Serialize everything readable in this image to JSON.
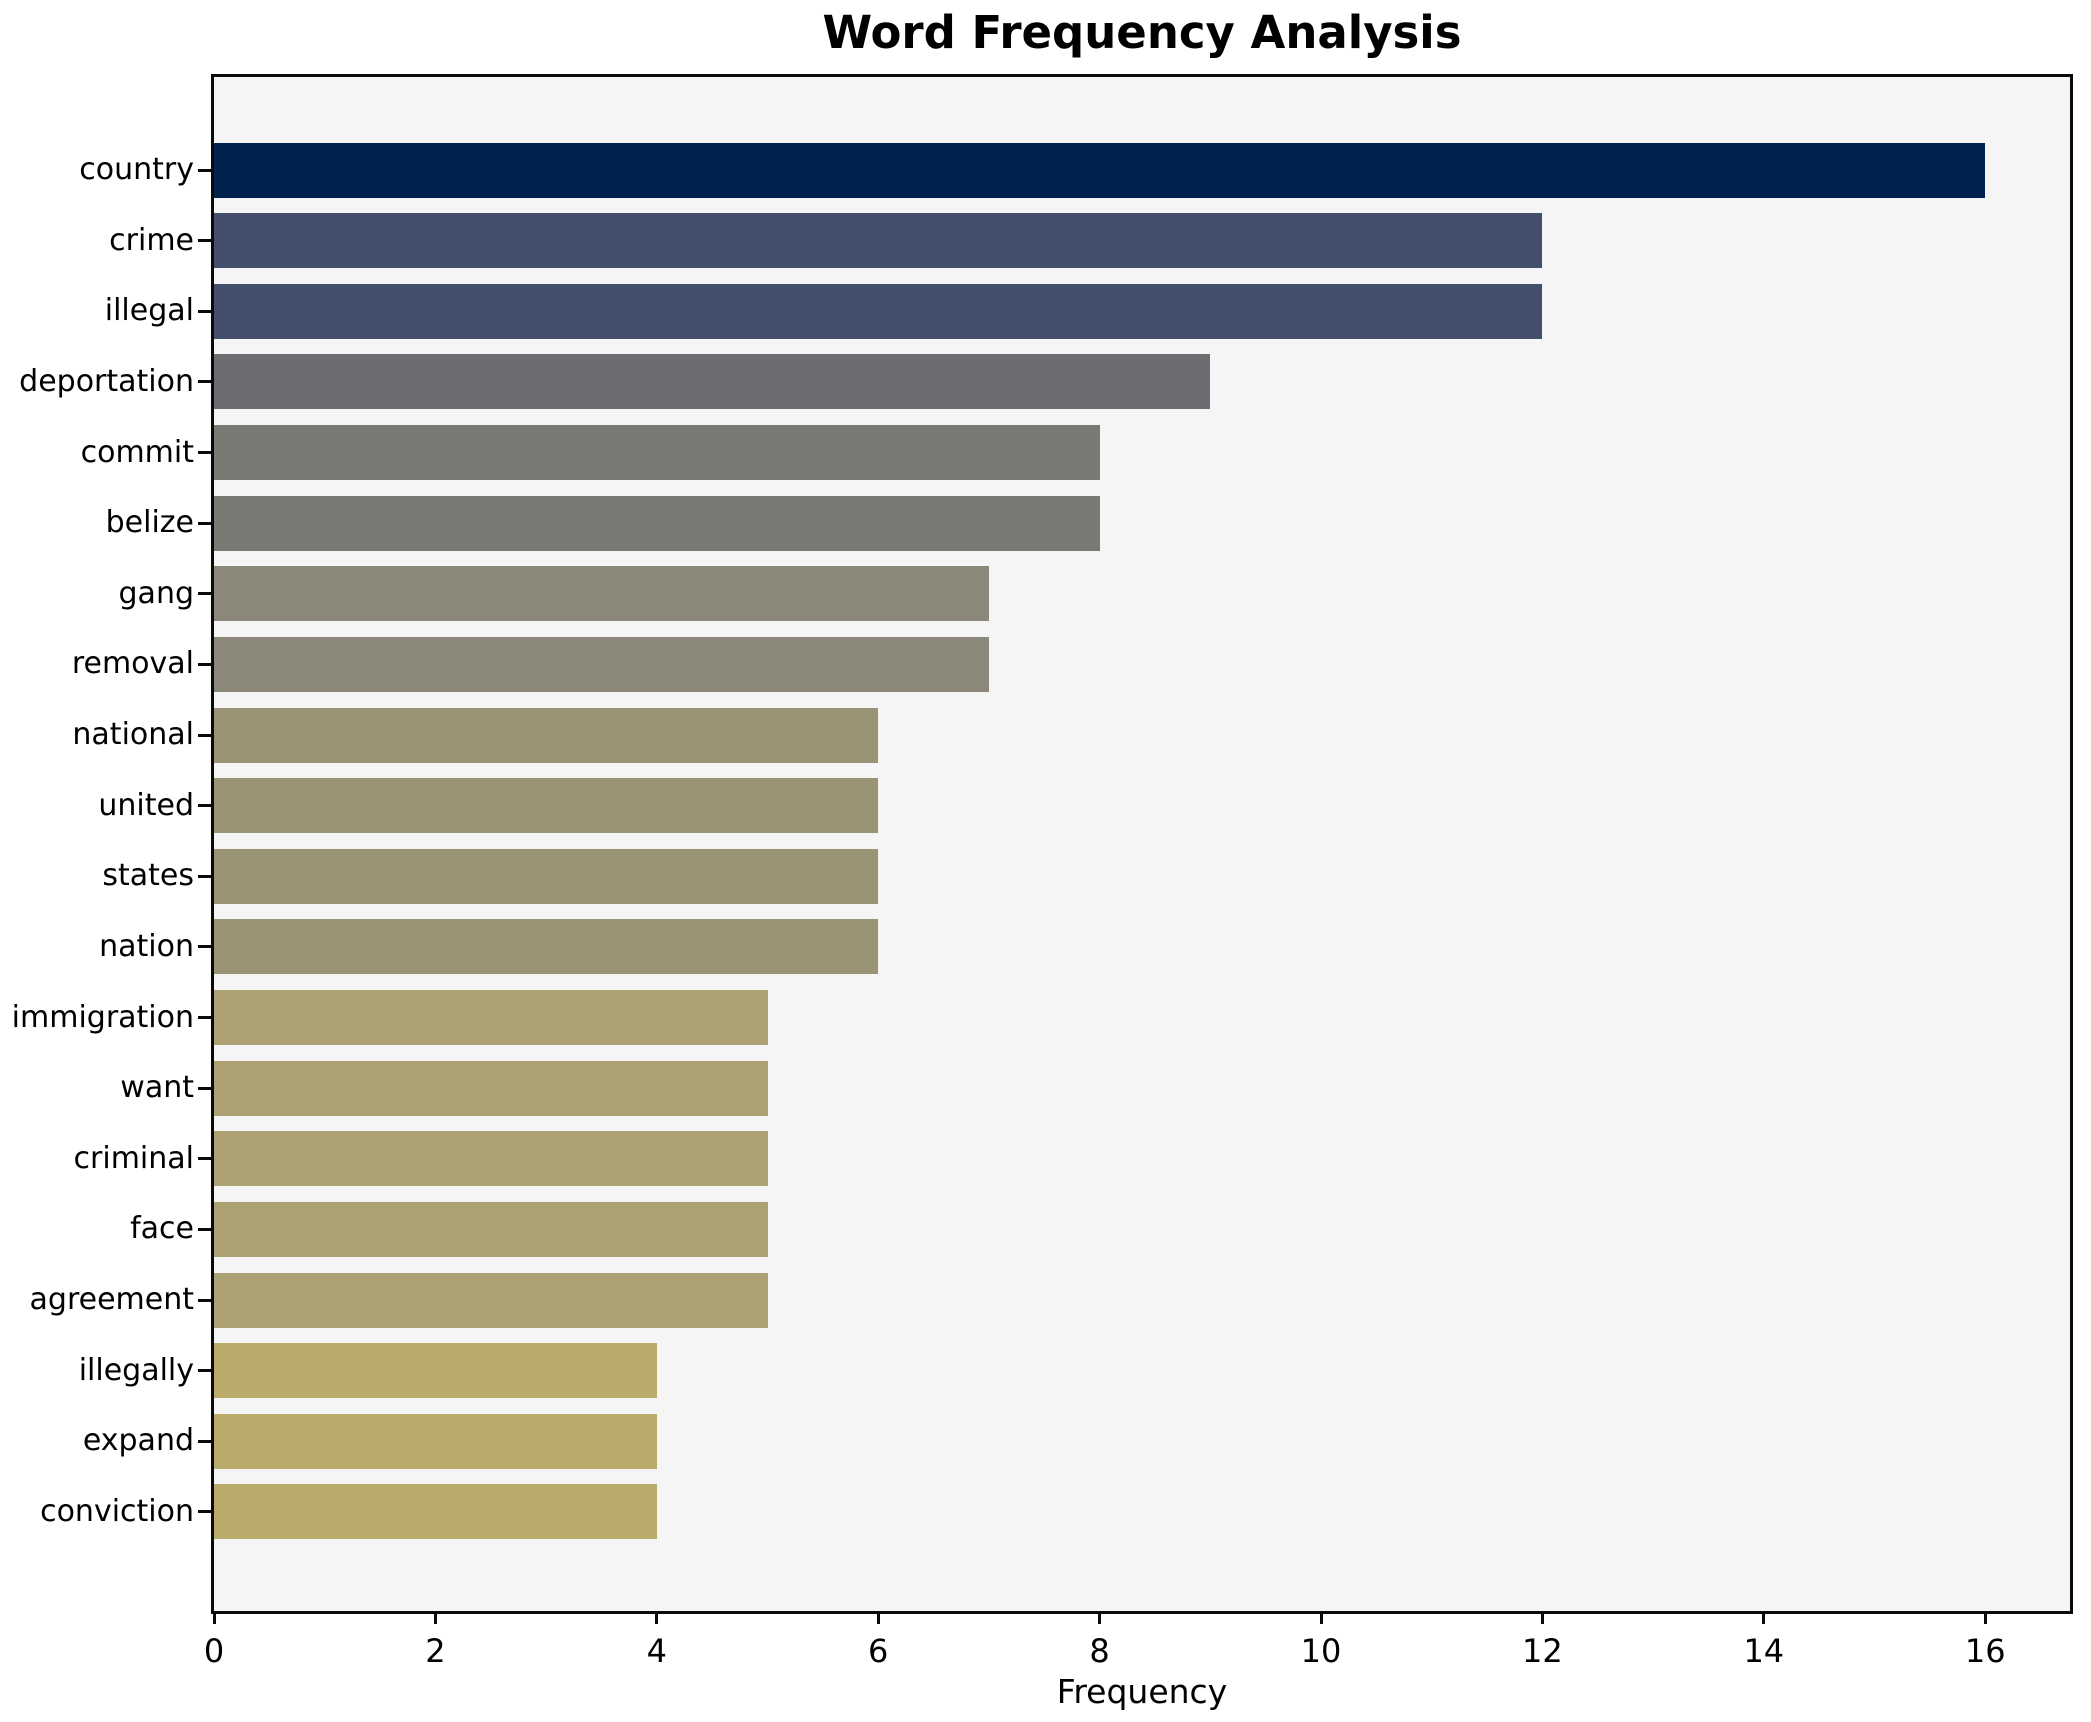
{
  "title": "Word Frequency Analysis",
  "chart_data": {
    "type": "bar",
    "orientation": "horizontal",
    "title": "Word Frequency Analysis",
    "xlabel": "Frequency",
    "ylabel": "",
    "categories": [
      "country",
      "crime",
      "illegal",
      "deportation",
      "commit",
      "belize",
      "gang",
      "removal",
      "national",
      "united",
      "states",
      "nation",
      "immigration",
      "want",
      "criminal",
      "face",
      "agreement",
      "illegally",
      "expand",
      "conviction"
    ],
    "values": [
      16,
      12,
      12,
      9,
      8,
      8,
      7,
      7,
      6,
      6,
      6,
      6,
      5,
      5,
      5,
      5,
      5,
      4,
      4,
      4
    ],
    "bar_colors": [
      "#00224E",
      "#444F6E",
      "#444F6E",
      "#6B6D71",
      "#7A7A74",
      "#7A7A74",
      "#8B887A",
      "#8B887A",
      "#9A9375",
      "#9A9375",
      "#9A9375",
      "#9A9375",
      "#ABA172",
      "#ABA172",
      "#ABA172",
      "#ABA172",
      "#ABA172",
      "#B9AB69",
      "#B9AB69",
      "#B9AB69"
    ],
    "x_ticks": [
      0,
      2,
      4,
      6,
      8,
      10,
      12,
      14,
      16
    ],
    "xlim": [
      0,
      16.8
    ],
    "grid": false,
    "legend": false,
    "plot_background": "#f5f5f6",
    "spine_color": "#0a0a0a"
  }
}
